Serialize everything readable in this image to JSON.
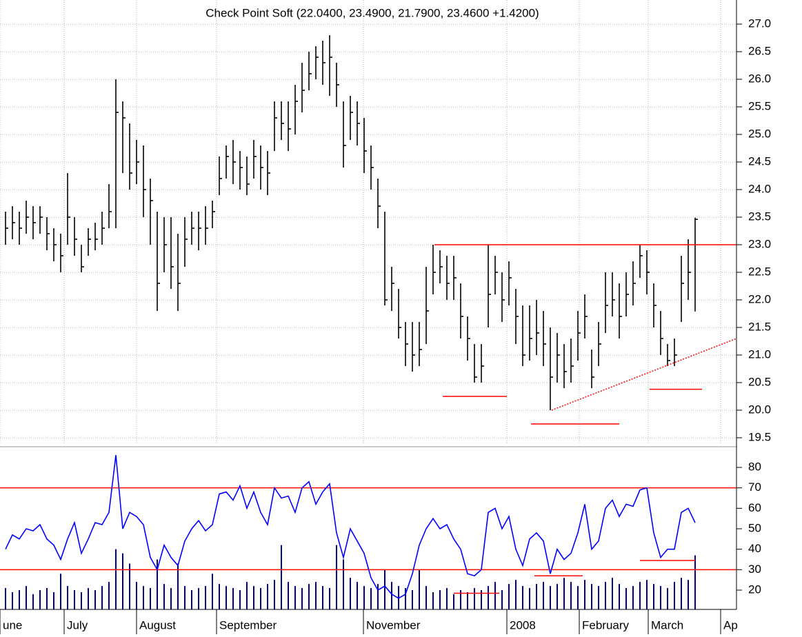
{
  "chart_data": [
    {
      "type": "hlc",
      "title": "Check Point Soft (22.0400, 23.4900, 21.7900, 23.4600 +1.4200)",
      "color": "#000000",
      "grid": true,
      "xlim": [
        -0.8,
        106
      ],
      "ylim": [
        19.375,
        27.4375
      ],
      "yticks": [
        {
          "value": 19.5,
          "label": "19.5"
        },
        {
          "value": 20,
          "label": "20.0"
        },
        {
          "value": 20.5,
          "label": "20.5"
        },
        {
          "value": 21,
          "label": "21.0"
        },
        {
          "value": 21.5,
          "label": "21.5"
        },
        {
          "value": 22,
          "label": "22.0"
        },
        {
          "value": 22.5,
          "label": "22.5"
        },
        {
          "value": 23,
          "label": "23.0"
        },
        {
          "value": 23.5,
          "label": "23.5"
        },
        {
          "value": 24,
          "label": "24.0"
        },
        {
          "value": 24.5,
          "label": "24.5"
        },
        {
          "value": 25,
          "label": "25.0"
        },
        {
          "value": 25.5,
          "label": "25.5"
        },
        {
          "value": 26,
          "label": "26.0"
        },
        {
          "value": 26.5,
          "label": "26.5"
        },
        {
          "value": 27,
          "label": "27.0"
        }
      ],
      "high": [
        23.6,
        23.7,
        23.6,
        23.8,
        23.7,
        23.7,
        23.5,
        23.3,
        23.2,
        24.3,
        23.5,
        23.0,
        23.3,
        23.4,
        23.6,
        24.1,
        26.0,
        25.6,
        25.2,
        24.9,
        24.8,
        24.2,
        23.6,
        23.5,
        23.5,
        23.2,
        23.5,
        23.6,
        23.6,
        23.7,
        23.8,
        24.6,
        24.8,
        24.9,
        24.7,
        24.6,
        24.9,
        24.8,
        24.7,
        25.6,
        25.6,
        25.6,
        25.9,
        26.3,
        26.5,
        26.6,
        26.7,
        26.8,
        26.3,
        25.6,
        25.7,
        25.6,
        25.3,
        24.8,
        24.2,
        23.6,
        22.6,
        22.2,
        21.6,
        21.6,
        21.6,
        22.6,
        23.0,
        22.9,
        22.8,
        22.8,
        22.3,
        21.7,
        21.2,
        21.2,
        23.0,
        22.8,
        22.5,
        22.7,
        22.2,
        21.9,
        21.9,
        22.0,
        21.8,
        21.5,
        21.4,
        21.2,
        21.3,
        21.8,
        22.1,
        21.1,
        21.6,
        22.5,
        22.5,
        22.3,
        22.5,
        22.7,
        23.0,
        22.9,
        22.3,
        21.8,
        21.2,
        21.3,
        22.8,
        23.1,
        23.49
      ],
      "low": [
        23.0,
        23.1,
        23.0,
        23.2,
        23.1,
        23.2,
        22.9,
        22.7,
        22.5,
        23.0,
        22.8,
        22.5,
        22.8,
        22.9,
        23.0,
        23.3,
        23.3,
        24.3,
        24.0,
        24.1,
        23.5,
        23.0,
        21.8,
        22.5,
        22.2,
        21.8,
        22.6,
        23.0,
        22.9,
        23.0,
        23.3,
        23.9,
        24.2,
        24.1,
        24.0,
        23.9,
        24.2,
        24.0,
        23.9,
        24.7,
        24.9,
        24.7,
        25.0,
        25.4,
        25.8,
        26.0,
        25.9,
        25.7,
        25.5,
        24.4,
        24.9,
        24.8,
        24.3,
        24.0,
        23.3,
        21.9,
        21.8,
        21.3,
        20.8,
        20.7,
        20.8,
        21.2,
        22.1,
        22.3,
        22.0,
        22.0,
        21.3,
        20.9,
        20.5,
        20.5,
        21.5,
        22.1,
        21.6,
        21.9,
        21.2,
        20.8,
        20.9,
        21.0,
        20.8,
        20.0,
        20.5,
        20.4,
        20.5,
        20.9,
        21.3,
        20.4,
        20.8,
        21.4,
        21.7,
        21.3,
        21.7,
        21.9,
        22.4,
        22.1,
        21.5,
        21.0,
        20.8,
        20.8,
        21.6,
        22.0,
        21.79
      ],
      "close": [
        23.3,
        23.4,
        23.3,
        23.5,
        23.4,
        23.5,
        23.2,
        23.0,
        22.8,
        23.5,
        23.1,
        22.6,
        23.1,
        23.1,
        23.3,
        23.6,
        25.4,
        25.3,
        24.3,
        24.5,
        24.0,
        23.8,
        22.3,
        23.0,
        22.6,
        22.3,
        23.1,
        23.3,
        23.3,
        23.3,
        23.6,
        24.2,
        24.6,
        24.5,
        24.4,
        24.1,
        24.6,
        24.4,
        24.3,
        25.3,
        25.2,
        25.1,
        25.6,
        25.8,
        26.1,
        26.4,
        26.3,
        26.4,
        25.9,
        24.8,
        25.4,
        25.2,
        24.7,
        24.4,
        23.7,
        22.0,
        22.3,
        21.5,
        21.2,
        21.0,
        21.1,
        21.8,
        22.5,
        22.6,
        22.3,
        22.4,
        21.7,
        21.3,
        20.6,
        20.8,
        22.1,
        22.5,
        22.0,
        22.4,
        21.7,
        21.0,
        21.3,
        21.4,
        21.2,
        20.6,
        21.0,
        20.7,
        20.8,
        21.4,
        21.7,
        20.6,
        21.2,
        21.9,
        22.0,
        21.7,
        22.1,
        22.3,
        22.8,
        22.5,
        21.9,
        21.3,
        20.9,
        21.0,
        22.3,
        22.5,
        23.46
      ],
      "lines": [
        {
          "color": "#ff0000",
          "x": [
            62.2,
            106
          ],
          "y": [
            23,
            23
          ]
        },
        {
          "color": "#ff0000",
          "x": [
            63.4,
            72.7
          ],
          "y": [
            20.25,
            20.25
          ]
        },
        {
          "color": "#ff0000",
          "x": [
            76.2,
            89
          ],
          "y": [
            19.75,
            19.75
          ]
        },
        {
          "color": "#ff0000",
          "x": [
            93.4,
            101
          ],
          "y": [
            20.38,
            20.38
          ]
        },
        {
          "color": "#ff0000",
          "x": [
            79.2,
            106
          ],
          "y": [
            20,
            21.3
          ],
          "dashed": true
        }
      ]
    },
    {
      "type": "rsi-volume",
      "xlim": [
        -0.8,
        106
      ],
      "ylim": [
        10.56,
        89.44
      ],
      "yticks": [
        20,
        30,
        40,
        50,
        60,
        70,
        80
      ],
      "xticks": [
        {
          "value": -0.8,
          "label": "une"
        },
        {
          "value": 8.5,
          "label": "July"
        },
        {
          "value": 19,
          "label": "August"
        },
        {
          "value": 30.6,
          "label": "September"
        },
        {
          "value": 51.9,
          "label": "November"
        },
        {
          "value": 72.7,
          "label": "2008"
        },
        {
          "value": 83.2,
          "label": "February"
        },
        {
          "value": 93.2,
          "label": "March"
        },
        {
          "value": 103.7,
          "label": "Ap"
        }
      ],
      "rsi": {
        "color": "#0000ff",
        "values": [
          40,
          47,
          45,
          50,
          49,
          52,
          45,
          42,
          35,
          45,
          53,
          38,
          45,
          53,
          52,
          58,
          86,
          50,
          58,
          56,
          52,
          36,
          30,
          42,
          36,
          32,
          44,
          50,
          54,
          49,
          52,
          67,
          68,
          64,
          71,
          60,
          68,
          58,
          52,
          70,
          65,
          66,
          58,
          70,
          73,
          62,
          68,
          72,
          48,
          36,
          50,
          44,
          38,
          26,
          20,
          22,
          18,
          16,
          18,
          28,
          42,
          50,
          55,
          50,
          52,
          45,
          40,
          28,
          27,
          30,
          58,
          60,
          50,
          56,
          40,
          32,
          45,
          48,
          44,
          28,
          40,
          35,
          38,
          48,
          62,
          40,
          44,
          60,
          64,
          56,
          62,
          61,
          69,
          70,
          48,
          36,
          40,
          40,
          58,
          60,
          53
        ]
      },
      "volume": {
        "color": "#00008b",
        "values": [
          21,
          19,
          20,
          22,
          18,
          20,
          21,
          19,
          28,
          22,
          20,
          19,
          21,
          20,
          22,
          24,
          40,
          38,
          33,
          24,
          22,
          21,
          35,
          23,
          21,
          33,
          22,
          20,
          21,
          22,
          28,
          23,
          22,
          21,
          20,
          24,
          22,
          21,
          23,
          25,
          42,
          24,
          22,
          21,
          23,
          24,
          22,
          21,
          42,
          35,
          26,
          24,
          22,
          21,
          23,
          30,
          24,
          22,
          21,
          20,
          30,
          22,
          19,
          20,
          21,
          18,
          20,
          19,
          21,
          20,
          22,
          24,
          20,
          23,
          25,
          22,
          21,
          23,
          24,
          22,
          23,
          26,
          24,
          22,
          25,
          23,
          22,
          24,
          26,
          23,
          21,
          22,
          24,
          25,
          23,
          22,
          21,
          24,
          26,
          25,
          37
        ]
      },
      "lines": [
        {
          "color": "#ff0000",
          "x": [
            -0.8,
            106
          ],
          "y": [
            70,
            70
          ]
        },
        {
          "color": "#ff0000",
          "x": [
            -0.8,
            106
          ],
          "y": [
            30,
            30
          ]
        },
        {
          "color": "#ff0000",
          "x": [
            65,
            71.6
          ],
          "y": [
            18.5,
            18.5
          ]
        },
        {
          "color": "#ff0000",
          "x": [
            76.7,
            83.7
          ],
          "y": [
            27,
            27
          ]
        },
        {
          "color": "#ff0000",
          "x": [
            92,
            100
          ],
          "y": [
            34.5,
            34.5
          ]
        }
      ]
    }
  ]
}
